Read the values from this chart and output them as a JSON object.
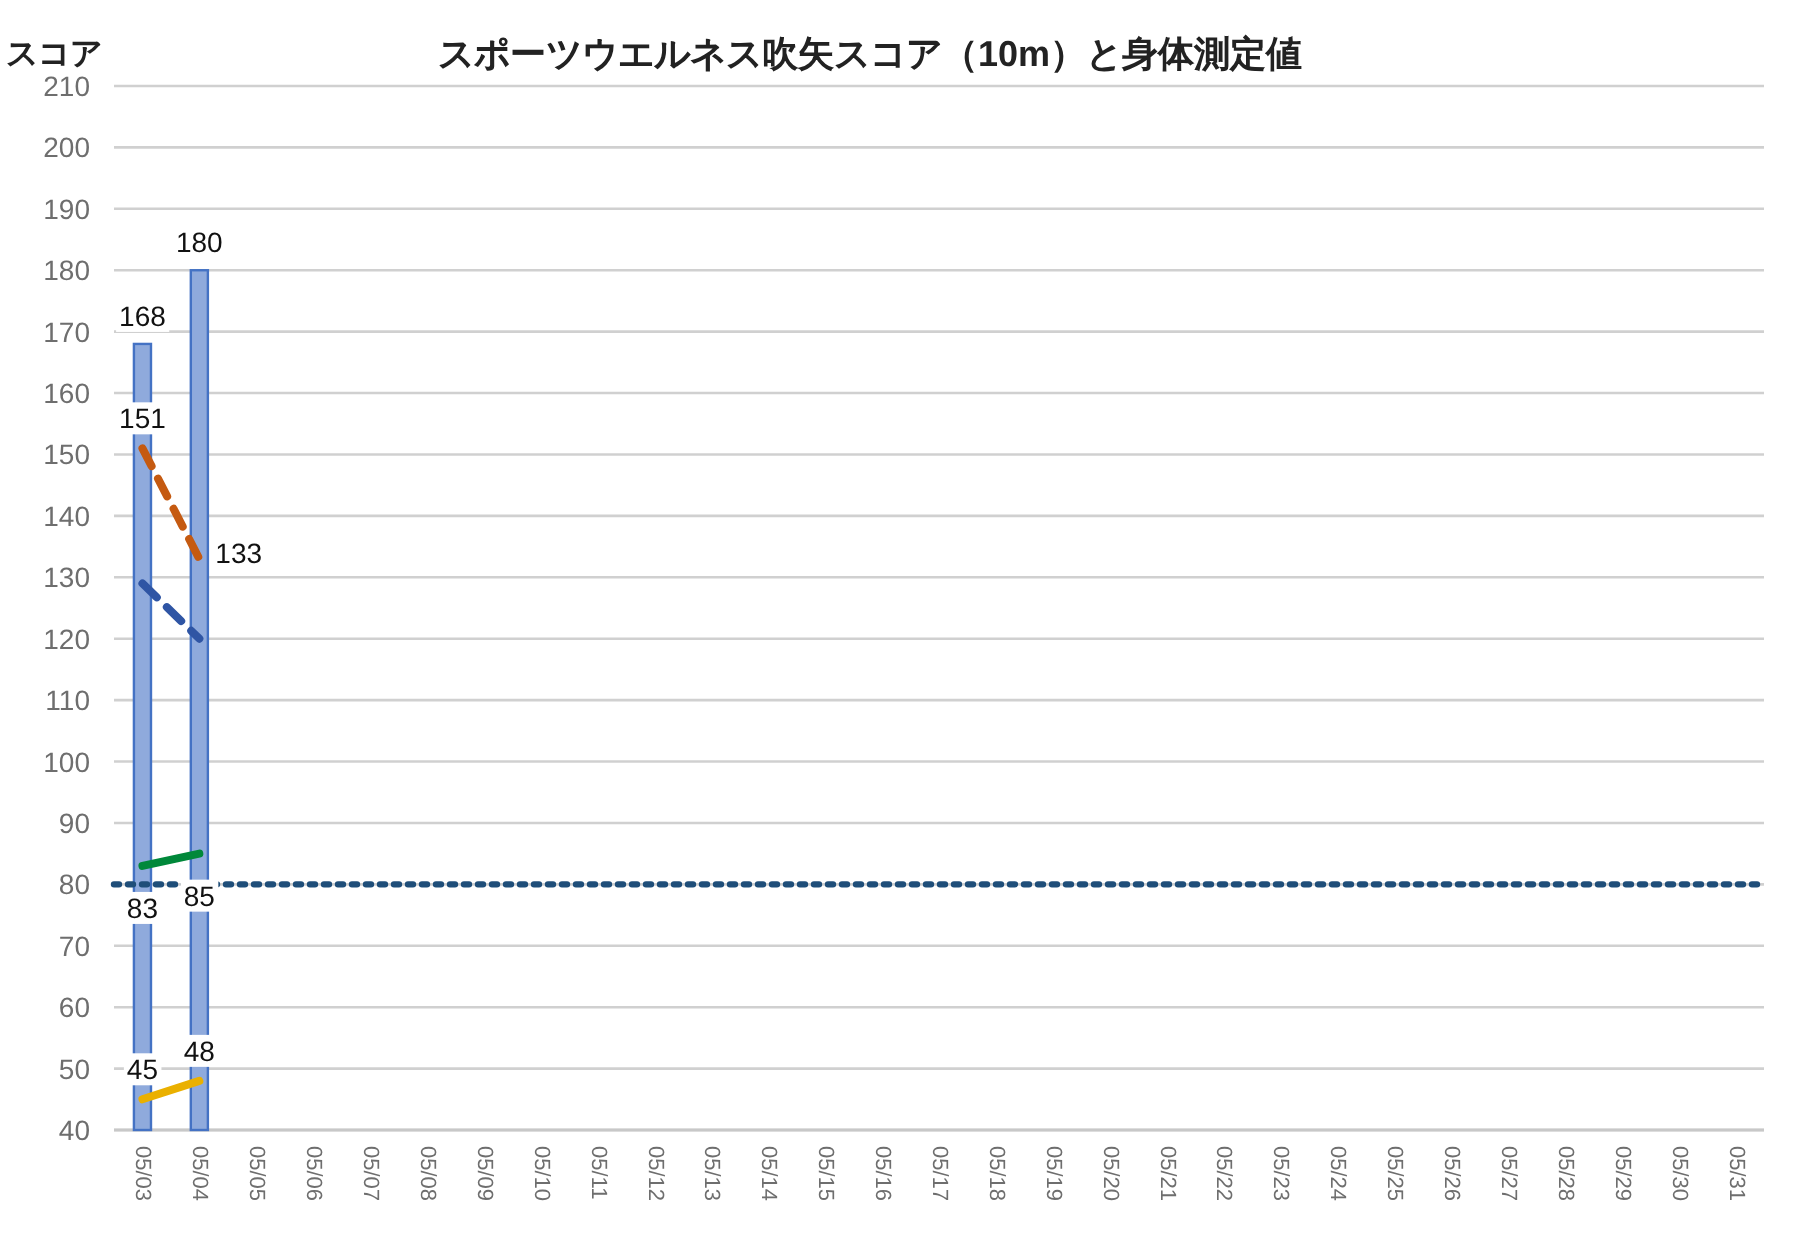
{
  "chart_data": {
    "type": "bar",
    "title": "スポーツウエルネス吹矢スコア（10m）と身体測定値",
    "ylabel": "スコア",
    "categories": [
      "05/03",
      "05/04",
      "05/05",
      "05/06",
      "05/07",
      "05/08",
      "05/09",
      "05/10",
      "05/11",
      "05/12",
      "05/13",
      "05/14",
      "05/15",
      "05/16",
      "05/17",
      "05/18",
      "05/19",
      "05/20",
      "05/21",
      "05/22",
      "05/23",
      "05/24",
      "05/25",
      "05/26",
      "05/27",
      "05/28",
      "05/29",
      "05/30",
      "05/31"
    ],
    "ylim": [
      40,
      210
    ],
    "yticks": [
      40,
      50,
      60,
      70,
      80,
      90,
      100,
      110,
      120,
      130,
      140,
      150,
      160,
      170,
      180,
      190,
      200,
      210
    ],
    "grid": "y",
    "series": [
      {
        "color": "#8faadc",
        "values": [
          168,
          180,
          null,
          null,
          null,
          null,
          null,
          null,
          null,
          null,
          null,
          null,
          null,
          null,
          null,
          null,
          null,
          null,
          null,
          null,
          null,
          null,
          null,
          null,
          null,
          null,
          null,
          null,
          null
        ],
        "value_labels": [
          "168",
          "180",
          null,
          null,
          null,
          null,
          null,
          null,
          null,
          null,
          null,
          null,
          null,
          null,
          null,
          null,
          null,
          null,
          null,
          null,
          null,
          null,
          null,
          null,
          null,
          null,
          null,
          null,
          null
        ]
      },
      {
        "type": "line",
        "color": "#c55a11",
        "line_style": "dashed",
        "values": [
          151,
          133,
          null,
          null,
          null,
          null,
          null,
          null,
          null,
          null,
          null,
          null,
          null,
          null,
          null,
          null,
          null,
          null,
          null,
          null,
          null,
          null,
          null,
          null,
          null,
          null,
          null,
          null,
          null
        ],
        "value_labels": [
          "151",
          "133",
          null,
          null,
          null,
          null,
          null,
          null,
          null,
          null,
          null,
          null,
          null,
          null,
          null,
          null,
          null,
          null,
          null,
          null,
          null,
          null,
          null,
          null,
          null,
          null,
          null,
          null,
          null
        ]
      },
      {
        "type": "line",
        "color": "#2f55a4",
        "line_style": "dashed",
        "values": [
          129,
          120,
          null,
          null,
          null,
          null,
          null,
          null,
          null,
          null,
          null,
          null,
          null,
          null,
          null,
          null,
          null,
          null,
          null,
          null,
          null,
          null,
          null,
          null,
          null,
          null,
          null,
          null,
          null
        ]
      },
      {
        "type": "line",
        "color": "#00883a",
        "line_style": "solid",
        "values": [
          83,
          85,
          null,
          null,
          null,
          null,
          null,
          null,
          null,
          null,
          null,
          null,
          null,
          null,
          null,
          null,
          null,
          null,
          null,
          null,
          null,
          null,
          null,
          null,
          null,
          null,
          null,
          null,
          null
        ],
        "value_labels": [
          "83",
          "85",
          null,
          null,
          null,
          null,
          null,
          null,
          null,
          null,
          null,
          null,
          null,
          null,
          null,
          null,
          null,
          null,
          null,
          null,
          null,
          null,
          null,
          null,
          null,
          null,
          null,
          null,
          null
        ]
      },
      {
        "type": "line",
        "color": "#eab000",
        "line_style": "solid",
        "values": [
          45,
          48,
          null,
          null,
          null,
          null,
          null,
          null,
          null,
          null,
          null,
          null,
          null,
          null,
          null,
          null,
          null,
          null,
          null,
          null,
          null,
          null,
          null,
          null,
          null,
          null,
          null,
          null,
          null
        ],
        "value_labels": [
          "45",
          "48",
          null,
          null,
          null,
          null,
          null,
          null,
          null,
          null,
          null,
          null,
          null,
          null,
          null,
          null,
          null,
          null,
          null,
          null,
          null,
          null,
          null,
          null,
          null,
          null,
          null,
          null,
          null
        ]
      }
    ],
    "ref_lines": [
      {
        "axis": "y",
        "value": 80,
        "color": "#1f4e79",
        "line_style": "dotted"
      }
    ]
  }
}
